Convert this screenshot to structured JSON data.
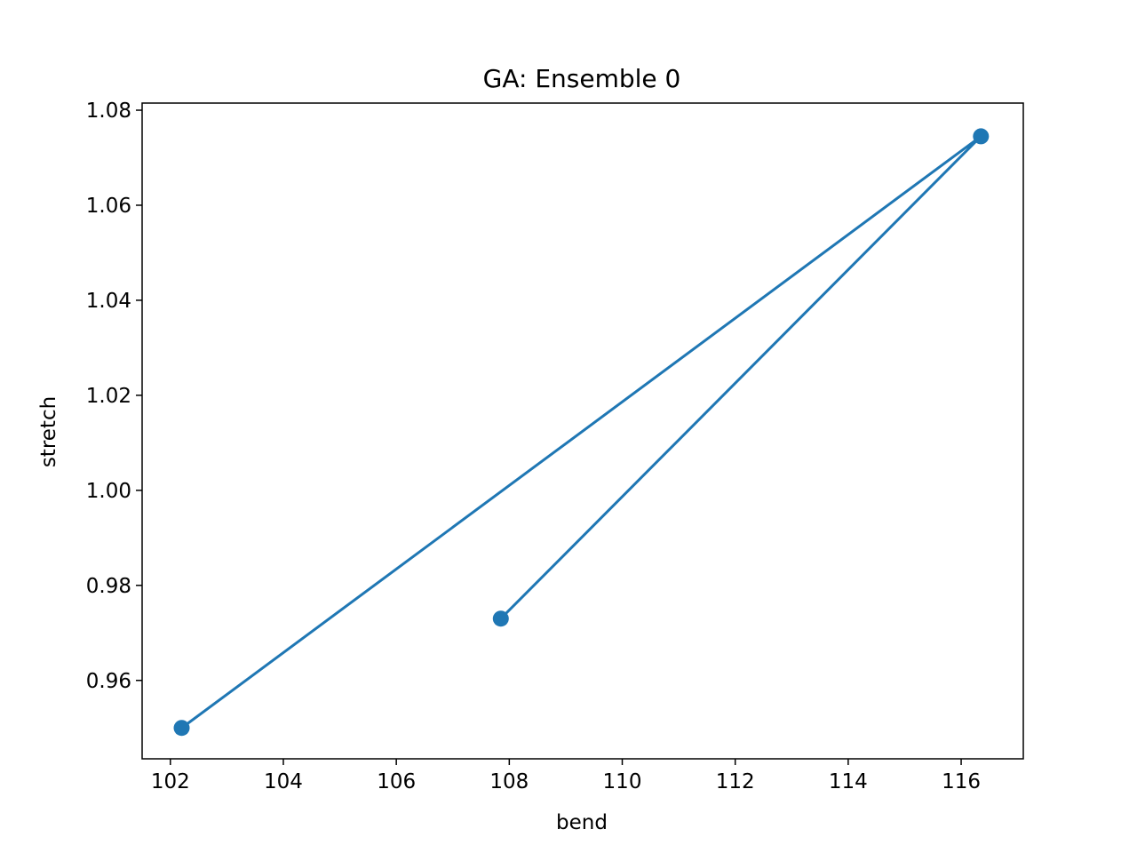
{
  "chart_data": {
    "type": "line",
    "title": "GA: Ensemble 0",
    "xlabel": "bend",
    "ylabel": "stretch",
    "xlim": [
      101.5,
      117.1
    ],
    "ylim": [
      0.9435,
      1.0815
    ],
    "xticks": [
      102,
      104,
      106,
      108,
      110,
      112,
      114,
      116
    ],
    "yticks": [
      0.96,
      0.98,
      1.0,
      1.02,
      1.04,
      1.06,
      1.08
    ],
    "xtick_labels": [
      "102",
      "104",
      "106",
      "108",
      "110",
      "112",
      "114",
      "116"
    ],
    "ytick_labels": [
      "0.96",
      "0.98",
      "1.00",
      "1.02",
      "1.04",
      "1.06",
      "1.08"
    ],
    "grid": false,
    "series": [
      {
        "color": "#1f77b4",
        "marker": "circle",
        "points": [
          {
            "x": 102.2,
            "y": 0.95
          },
          {
            "x": 116.35,
            "y": 1.0745
          },
          {
            "x": 107.85,
            "y": 0.973
          }
        ]
      }
    ]
  }
}
